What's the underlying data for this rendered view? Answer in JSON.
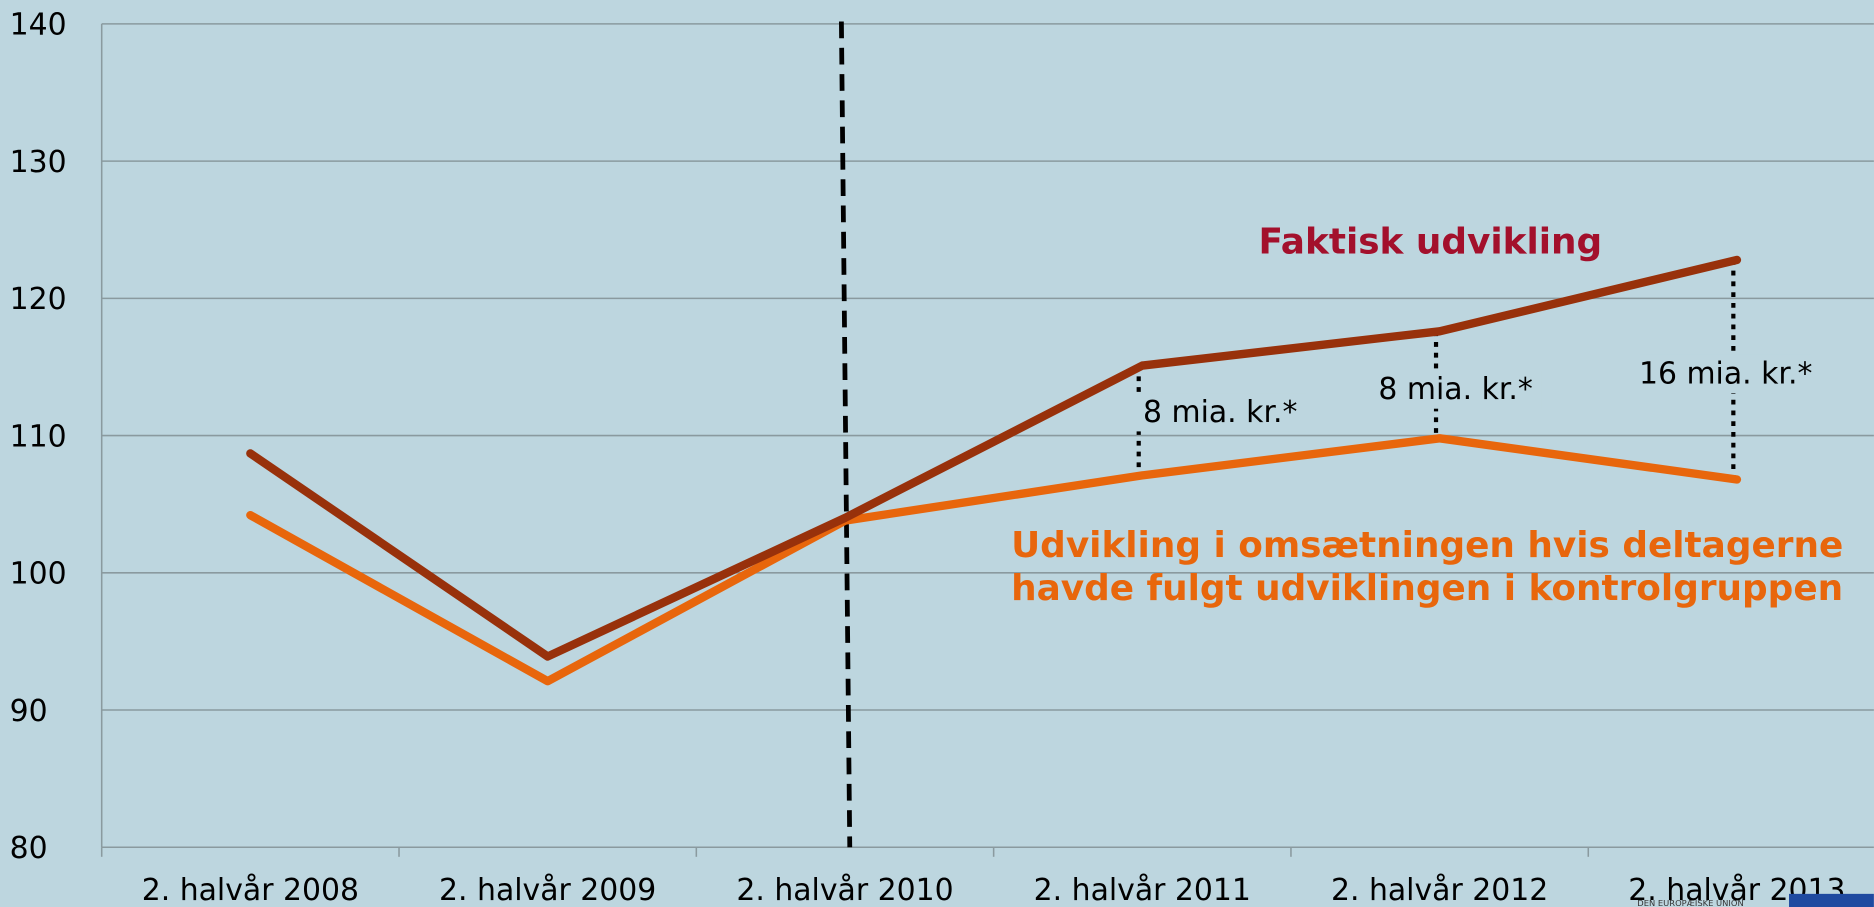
{
  "chart_data": {
    "type": "line",
    "categories": [
      "2. halvår 2008",
      "2. halvår 2009",
      "2. halvår 2010",
      "2. halvår 2011",
      "2. halvår 2012",
      "2. halvår 2013"
    ],
    "series": [
      {
        "name": "Faktisk udvikling",
        "color": "#98310b",
        "label_color": "#a3102c",
        "values": [
          108.7,
          93.9,
          104,
          115.1,
          117.6,
          122.8
        ]
      },
      {
        "name": "Udvikling i omsætningen hvis deltagerne havde fulgt udviklingen i kontrolgruppen",
        "color": "#e8660c",
        "label_color": "#e8660c",
        "values": [
          104.2,
          92.1,
          103.8,
          107.1,
          109.8,
          106.8
        ]
      }
    ],
    "annotations": [
      "8 mia. kr.*",
      "8 mia. kr.*",
      "16 mia. kr.*"
    ],
    "logo_text": "DEN EUROPÆISKE UNION",
    "ylim": [
      80,
      140
    ],
    "yticks": [
      80,
      90,
      100,
      110,
      120,
      130,
      140
    ],
    "grid": true
  }
}
